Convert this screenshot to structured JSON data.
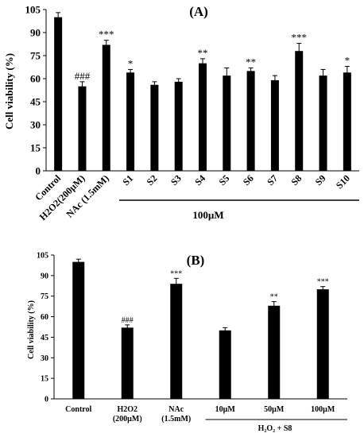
{
  "chart_data": [
    {
      "type": "bar",
      "title": "(A)",
      "ylabel": "Cell viability (%)",
      "xlabel": "",
      "ylim": [
        0,
        105
      ],
      "yticks": [
        0,
        15,
        30,
        45,
        60,
        75,
        90,
        105
      ],
      "grid": false,
      "categories": [
        "Control",
        "H2O2(200µM)",
        "NAc (1.5mM)",
        "S1",
        "S2",
        "S3",
        "S4",
        "S5",
        "S6",
        "S7",
        "S8",
        "S9",
        "S10"
      ],
      "values": [
        100,
        55,
        82,
        64,
        56,
        58,
        70,
        62,
        65,
        59,
        78,
        62,
        64
      ],
      "errors": [
        3,
        3,
        3,
        2,
        2,
        2,
        3,
        5,
        2,
        3,
        5,
        4,
        4
      ],
      "annotations": [
        "",
        "###",
        "***",
        "*",
        "",
        "",
        "**",
        "",
        "**",
        "",
        "***",
        "",
        "*"
      ],
      "group_label": "100µM",
      "bar_color": "#000000"
    },
    {
      "type": "bar",
      "title": "(B)",
      "ylabel": "Cell viability (%)",
      "xlabel": "",
      "ylim": [
        0,
        105
      ],
      "yticks": [
        0,
        15,
        30,
        45,
        60,
        75,
        90,
        105
      ],
      "grid": false,
      "categories": [
        [
          "Control"
        ],
        [
          "H2O2",
          "(200µM)"
        ],
        [
          "NAc",
          "(1.5mM)"
        ],
        [
          "10µM"
        ],
        [
          "50µM"
        ],
        [
          "100µM"
        ]
      ],
      "values": [
        100,
        52,
        84,
        50,
        68,
        80
      ],
      "errors": [
        2,
        2,
        4,
        2,
        3,
        2
      ],
      "annotations": [
        "",
        "###",
        "***",
        "",
        "**",
        "***"
      ],
      "group_label": "H₂O₂ + S8",
      "bar_color": "#000000"
    }
  ]
}
